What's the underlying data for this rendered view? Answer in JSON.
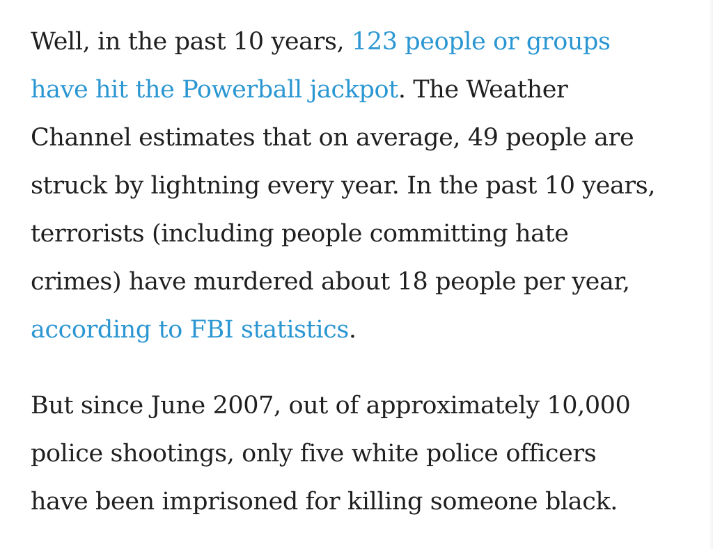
{
  "article": {
    "paragraph1": {
      "l1_text": "Well, in the past 10 years, ",
      "l1_link": "123 people or groups",
      "l2_link": "have hit the Powerball jackpot",
      "l2_text": ". The Weather",
      "l3": "Channel estimates that on average, 49 people are",
      "l4": "struck by lightning every year. In the past 10 years,",
      "l5": "terrorists (including people committing hate",
      "l6": "crimes) have murdered about 18 people per year,",
      "l7_link": "according to FBI statistics",
      "l7_text": "."
    },
    "paragraph2": {
      "l1": "But since June 2007, out of approximately 10,000",
      "l2": "police shootings, only five white police officers",
      "l3": "have been imprisoned for killing someone black."
    }
  },
  "colors": {
    "text": "#1f1f1f",
    "link": "#2a96d2",
    "background": "#ffffff"
  }
}
